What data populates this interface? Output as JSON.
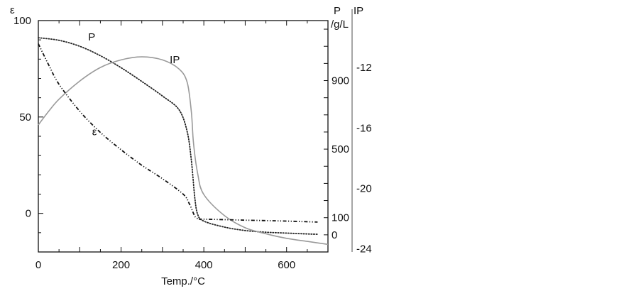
{
  "chart_data": {
    "type": "line",
    "xlabel": "Temp./°C",
    "xlim": [
      0,
      700
    ],
    "x_ticks": [
      0,
      200,
      400,
      600
    ],
    "left_axis": {
      "label": "ε",
      "ylim": [
        -20,
        100
      ],
      "ticks": [
        0,
        50,
        100
      ]
    },
    "p_axis": {
      "label_line1": "P",
      "label_line2": "/g/L",
      "ylim": [
        -100,
        1250
      ],
      "ticks": [
        0,
        100,
        500,
        900
      ]
    },
    "ip_axis": {
      "label": "IP",
      "ylim": [
        -24.2,
        -8.9
      ],
      "ticks": [
        -12,
        -16,
        -20,
        -24
      ]
    },
    "series": [
      {
        "name": "P",
        "axis": "p_axis",
        "style": "dotted",
        "color": "#222222",
        "x": [
          0,
          50,
          100,
          150,
          200,
          250,
          300,
          340,
          360,
          370,
          378,
          385,
          400,
          450,
          500,
          550,
          600,
          650,
          675
        ],
        "y": [
          1150,
          1135,
          1100,
          1045,
          975,
          895,
          810,
          730,
          600,
          430,
          220,
          120,
          80,
          45,
          25,
          15,
          10,
          5,
          3
        ]
      },
      {
        "name": "IP",
        "axis": "ip_axis",
        "style": "solid",
        "color": "#9a9a9a",
        "x": [
          0,
          25,
          50,
          100,
          150,
          200,
          250,
          300,
          340,
          360,
          370,
          375,
          385,
          400,
          450,
          500,
          550,
          600,
          650,
          700
        ],
        "y": [
          -15.8,
          -14.9,
          -14.1,
          -12.9,
          -12.0,
          -11.5,
          -11.3,
          -11.5,
          -12.1,
          -13.0,
          -15.0,
          -17.0,
          -19.0,
          -20.4,
          -21.8,
          -22.6,
          -23.0,
          -23.3,
          -23.5,
          -23.7
        ]
      },
      {
        "name": "ε",
        "axis": "left_axis",
        "style": "dashdotdot",
        "color": "#111111",
        "x": [
          0,
          25,
          50,
          100,
          150,
          200,
          250,
          300,
          350,
          365,
          375,
          380,
          390,
          400,
          500,
          600,
          675
        ],
        "y": [
          88,
          77,
          67,
          53,
          42,
          33,
          25,
          18,
          10,
          5,
          0,
          -2,
          -3,
          -3,
          -3.5,
          -4,
          -4.5
        ]
      }
    ],
    "annotations": [
      {
        "text": "P",
        "series": "P"
      },
      {
        "text": "IP",
        "series": "IP"
      },
      {
        "text": "ε",
        "series": "ε"
      }
    ]
  }
}
